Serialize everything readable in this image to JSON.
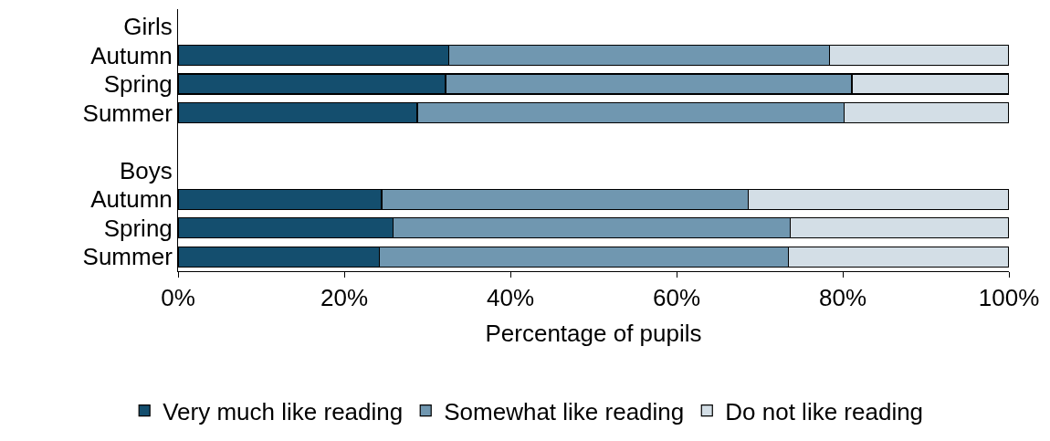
{
  "chart_data": {
    "type": "bar",
    "orientation": "horizontal",
    "stacked": true,
    "xlabel": "Percentage of pupils",
    "categories": [
      "Girls",
      "Autumn",
      "Spring",
      "Summer",
      null,
      "Boys",
      "Autumn",
      "Spring",
      "Summer"
    ],
    "series": [
      {
        "name": "Very much like reading",
        "color": "#144e6e",
        "values": [
          null,
          32.6,
          32.2,
          28.8,
          null,
          null,
          24.5,
          25.9,
          24.2
        ]
      },
      {
        "name": "Somewhat like reading",
        "color": "#7097b0",
        "values": [
          null,
          45.8,
          48.9,
          51.4,
          null,
          null,
          44.1,
          47.8,
          49.3
        ]
      },
      {
        "name": "Do not like reading",
        "color": "#d3dee6",
        "values": [
          null,
          21.6,
          18.9,
          19.8,
          null,
          null,
          31.4,
          26.3,
          26.5
        ]
      }
    ],
    "xlim": [
      0,
      100
    ],
    "xticks": [
      {
        "value": 0,
        "label": "0%"
      },
      {
        "value": 20,
        "label": "20%"
      },
      {
        "value": 40,
        "label": "40%"
      },
      {
        "value": 60,
        "label": "60%"
      },
      {
        "value": 80,
        "label": "80%"
      },
      {
        "value": 100,
        "label": "100%"
      }
    ],
    "legend": "bottom"
  }
}
